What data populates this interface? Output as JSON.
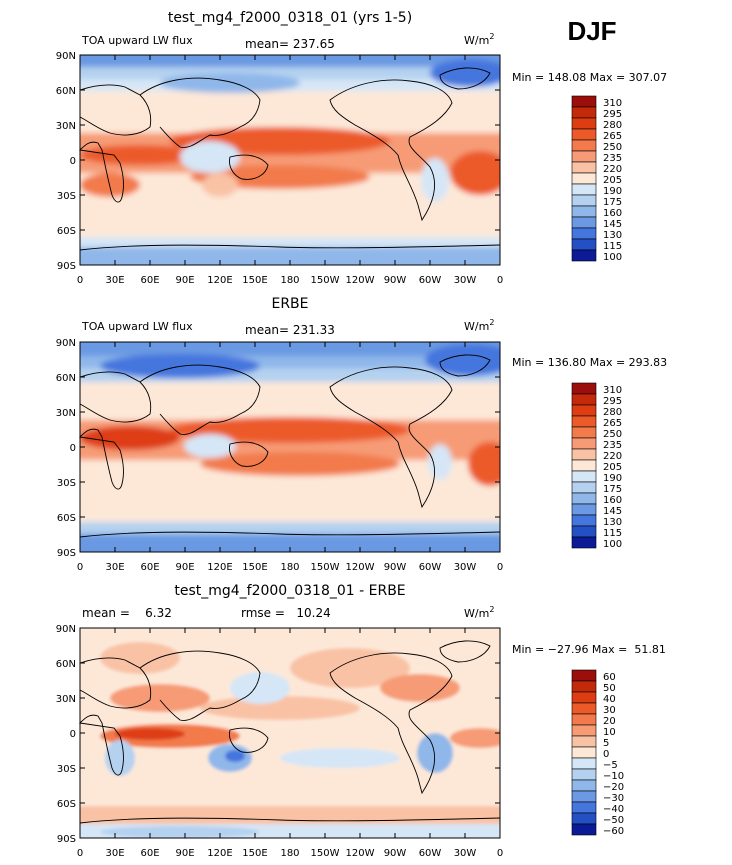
{
  "season": "DJF",
  "units_prefix": "W/m",
  "units_exp": "2",
  "lat_labels": [
    "90N",
    "60N",
    "30N",
    "0",
    "30S",
    "60S",
    "90S"
  ],
  "lon_labels": [
    "0",
    "30E",
    "60E",
    "90E",
    "120E",
    "150E",
    "180",
    "150W",
    "120W",
    "90W",
    "60W",
    "30W",
    "0"
  ],
  "panels": [
    {
      "title": "test_mg4_f2000_0318_01 (yrs 1-5)",
      "left_label": "TOA upward LW flux",
      "center_label": "mean= 237.65",
      "minmax": "Min = 148.08 Max = 307.07"
    },
    {
      "title": "ERBE",
      "left_label": "TOA upward LW flux",
      "center_label": "mean= 231.33",
      "minmax": "Min = 136.80 Max = 293.83"
    },
    {
      "title": "test_mg4_f2000_0318_01 - ERBE",
      "left_label": "mean =    6.32",
      "center_label": "rmse =   10.24",
      "minmax": "Min = −27.96 Max =  51.81"
    }
  ],
  "chart_data": [
    {
      "type": "heatmap",
      "title": "test_mg4_f2000_0318_01 (yrs 1-5)",
      "variable": "TOA upward LW flux",
      "units": "W/m2",
      "mean": 237.65,
      "min": 148.08,
      "max": 307.07,
      "legend_levels": [
        "310",
        "295",
        "280",
        "265",
        "250",
        "235",
        "220",
        "205",
        "190",
        "175",
        "160",
        "145",
        "130",
        "115",
        "100"
      ],
      "legend_colors": [
        "#9b0e0b",
        "#c42a09",
        "#de3d12",
        "#ec5a2a",
        "#f27a4c",
        "#f69b76",
        "#f9c2a5",
        "#fde8d8",
        "#d5e6f7",
        "#b4d1f0",
        "#8fb7ea",
        "#6b99e3",
        "#4576de",
        "#2350c4",
        "#0b1a96"
      ]
    },
    {
      "type": "heatmap",
      "title": "ERBE",
      "variable": "TOA upward LW flux",
      "units": "W/m2",
      "mean": 231.33,
      "min": 136.8,
      "max": 293.83,
      "legend_levels": [
        "310",
        "295",
        "280",
        "265",
        "250",
        "235",
        "220",
        "205",
        "190",
        "175",
        "160",
        "145",
        "130",
        "115",
        "100"
      ],
      "legend_colors": [
        "#9b0e0b",
        "#c42a09",
        "#de3d12",
        "#ec5a2a",
        "#f27a4c",
        "#f69b76",
        "#f9c2a5",
        "#fde8d8",
        "#d5e6f7",
        "#b4d1f0",
        "#8fb7ea",
        "#6b99e3",
        "#4576de",
        "#2350c4",
        "#0b1a96"
      ]
    },
    {
      "type": "heatmap",
      "title": "test_mg4_f2000_0318_01 - ERBE",
      "variable": "difference",
      "units": "W/m2",
      "mean": 6.32,
      "rmse": 10.24,
      "min": -27.96,
      "max": 51.81,
      "legend_levels": [
        "60",
        "50",
        "40",
        "30",
        "20",
        "10",
        "5",
        "0",
        "−5",
        "−10",
        "−20",
        "−30",
        "−40",
        "−50",
        "−60"
      ],
      "legend_colors": [
        "#9b0e0b",
        "#c42a09",
        "#de3d12",
        "#ec5a2a",
        "#f27a4c",
        "#f69b76",
        "#f9c2a5",
        "#fde8d8",
        "#d5e6f7",
        "#b4d1f0",
        "#8fb7ea",
        "#6b99e3",
        "#4576de",
        "#2350c4",
        "#0b1a96"
      ]
    }
  ]
}
